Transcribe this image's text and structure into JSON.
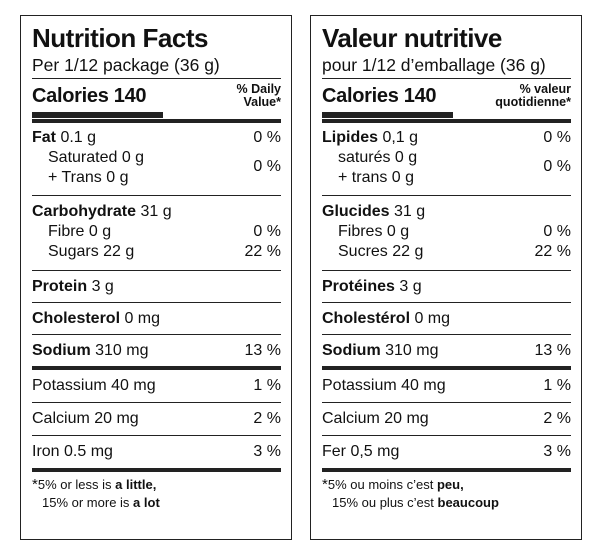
{
  "en": {
    "title": "Nutrition Facts",
    "serving": "Per 1/12 package (36 g)",
    "calories_label": "Calories 140",
    "dv_line1": "% Daily",
    "dv_line2": "Value*",
    "fat_name": "Fat",
    "fat_amount": " 0.1 g",
    "fat_dv": "0 %",
    "sat_label": "Saturated 0 g",
    "trans_label": "+ Trans 0 g",
    "sat_trans_dv": "0 %",
    "carb_name": "Carbohydrate",
    "carb_amount": " 31 g",
    "fibre_label": "Fibre 0 g",
    "fibre_dv": "0 %",
    "sugars_label": "Sugars 22 g",
    "sugars_dv": "22 %",
    "protein_name": "Protein",
    "protein_amount": " 3 g",
    "chol_name": "Cholesterol",
    "chol_amount": " 0 mg",
    "sodium_name": "Sodium",
    "sodium_amount": " 310 mg",
    "sodium_dv": "13 %",
    "potassium_label": "Potassium 40 mg",
    "potassium_dv": "1 %",
    "calcium_label": "Calcium 20 mg",
    "calcium_dv": "2 %",
    "iron_label": "Iron 0.5 mg",
    "iron_dv": "3 %",
    "fn_star": "*",
    "fn_1a": "5% or less is ",
    "fn_1b": "a little",
    "fn_1c": ",",
    "fn_2a": "15% or more is ",
    "fn_2b": "a lot"
  },
  "fr": {
    "title": "Valeur nutritive",
    "serving": "pour 1/12 d’emballage (36 g)",
    "calories_label": "Calories 140",
    "dv_line1": "% valeur",
    "dv_line2": "quotidienne*",
    "fat_name": "Lipides",
    "fat_amount": " 0,1 g",
    "fat_dv": "0 %",
    "sat_label": "saturés 0 g",
    "trans_label": "+ trans 0 g",
    "sat_trans_dv": "0 %",
    "carb_name": "Glucides",
    "carb_amount": " 31 g",
    "fibre_label": "Fibres 0 g",
    "fibre_dv": "0 %",
    "sugars_label": "Sucres 22 g",
    "sugars_dv": "22 %",
    "protein_name": "Protéines",
    "protein_amount": " 3 g",
    "chol_name": "Cholestérol",
    "chol_amount": " 0 mg",
    "sodium_name": "Sodium",
    "sodium_amount": " 310 mg",
    "sodium_dv": "13 %",
    "potassium_label": "Potassium 40 mg",
    "potassium_dv": "1 %",
    "calcium_label": "Calcium 20 mg",
    "calcium_dv": "2 %",
    "iron_label": "Fer 0,5 mg",
    "iron_dv": "3 %",
    "fn_star": "*",
    "fn_1a": "5% ou moins c’est ",
    "fn_1b": "peu",
    "fn_1c": ",",
    "fn_2a": "15% ou plus c’est ",
    "fn_2b": "beaucoup"
  }
}
